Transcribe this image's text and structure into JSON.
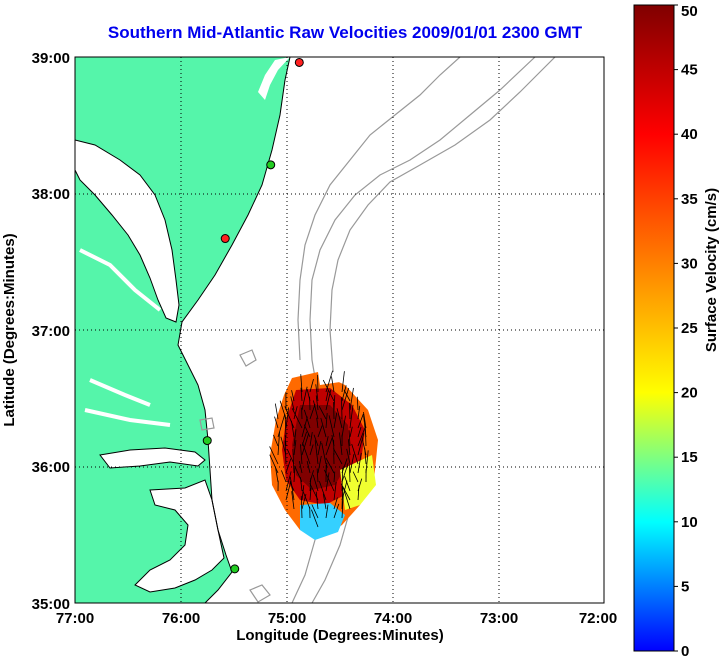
{
  "title": "Southern Mid-Atlantic Raw Velocities 2009/01/01 2300 GMT",
  "x_axis": {
    "label": "Longitude (Degrees:Minutes)",
    "ticks": [
      "77:00",
      "76:00",
      "75:00",
      "74:00",
      "73:00",
      "72:00"
    ],
    "range": [
      -77,
      -72
    ]
  },
  "y_axis": {
    "label": "Latitude (Degrees:Minutes)",
    "ticks": [
      "39:00",
      "38:00",
      "37:00",
      "36:00",
      "35:00"
    ],
    "range": [
      35,
      39
    ]
  },
  "colorbar": {
    "label": "Surface Velocity (cm/s)",
    "ticks": [
      "50",
      "45",
      "40",
      "35",
      "30",
      "25",
      "20",
      "15",
      "10",
      "5",
      "0"
    ],
    "range": [
      0,
      50
    ],
    "colormap": [
      "#0000ff",
      "#00ffff",
      "#ffff00",
      "#ff8000",
      "#ff0000",
      "#800000"
    ]
  },
  "colors": {
    "land": "#55f5aa",
    "coastline": "#000000",
    "bathymetry": "#999999",
    "grid": "#000000",
    "title": "#0000ee"
  },
  "stations": [
    {
      "lon": -74.88,
      "lat": 38.96,
      "color": "#ff2020"
    },
    {
      "lon": -75.15,
      "lat": 38.21,
      "color": "#22cc22"
    },
    {
      "lon": -75.58,
      "lat": 37.67,
      "color": "#ff2020"
    },
    {
      "lon": -75.75,
      "lat": 36.19,
      "color": "#22cc22"
    },
    {
      "lon": -75.49,
      "lat": 35.25,
      "color": "#22cc22"
    }
  ]
}
